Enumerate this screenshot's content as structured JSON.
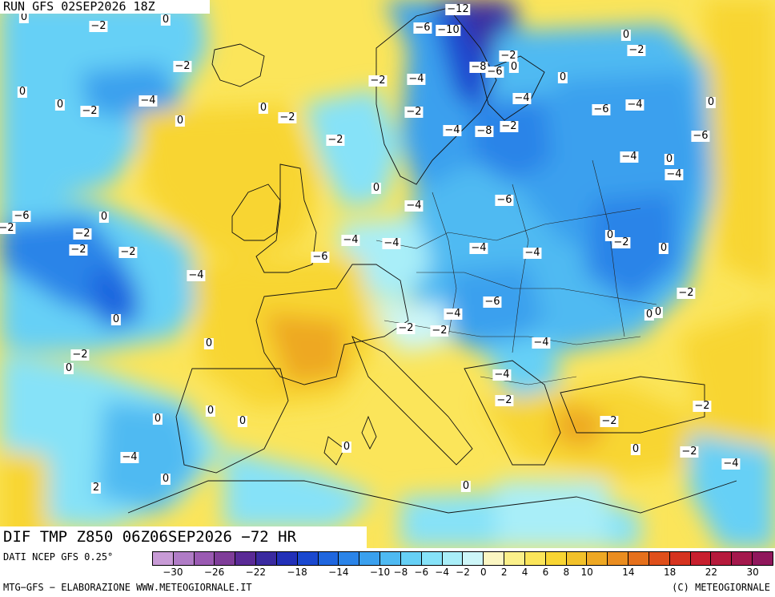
{
  "header": {
    "run_label": "RUN GFS 02SEP2026 18Z"
  },
  "field_title": "DIF TMP Z850 06Z06SEP2026 −72 HR",
  "footer": {
    "source": "DATI NCEP GFS 0.25°",
    "credit_left": "MTG−GFS − ELABORAZIONE WWW.METEOGIORNALE.IT",
    "credit_right": "(C) METEOGIORNALE"
  },
  "legend": {
    "colors": [
      "#c89bd6",
      "#b07cc6",
      "#9a5ab2",
      "#7f3d99",
      "#5a2a96",
      "#3a2aa0",
      "#2230b8",
      "#1a48cf",
      "#1f66df",
      "#2b84e8",
      "#3aa0ee",
      "#4fbaf2",
      "#66d0f6",
      "#86e2f8",
      "#a9eef8",
      "#cdf6f8",
      "#fbf6c2",
      "#fbf08a",
      "#fbe55a",
      "#f8d533",
      "#f2c12a",
      "#eea824",
      "#ea8d20",
      "#e5701c",
      "#df4f1b",
      "#d6331f",
      "#c81f2e",
      "#b61a3c",
      "#a4184c",
      "#90175c"
    ],
    "ticks": [
      "−30",
      "−26",
      "−22",
      "−18",
      "−14",
      "−10",
      "−8",
      "−6",
      "−4",
      "−2",
      "0",
      "2",
      "4",
      "6",
      "8",
      "10",
      "14",
      "18",
      "22",
      "30"
    ]
  },
  "map_labels": [
    {
      "t": "0"
    },
    {
      "t": "−2"
    },
    {
      "t": "0"
    },
    {
      "t": "−12"
    },
    {
      "t": "−6"
    },
    {
      "t": "−10"
    },
    {
      "t": "0"
    },
    {
      "t": "−2"
    },
    {
      "t": "−2"
    },
    {
      "t": "−8"
    },
    {
      "t": "−6"
    },
    {
      "t": "0"
    },
    {
      "t": "−2"
    },
    {
      "t": "0"
    },
    {
      "t": "0"
    },
    {
      "t": "−4"
    },
    {
      "t": "0"
    },
    {
      "t": "−2"
    },
    {
      "t": "−4"
    },
    {
      "t": "−2"
    },
    {
      "t": "−4"
    },
    {
      "t": "0"
    },
    {
      "t": "0"
    },
    {
      "t": "−2"
    },
    {
      "t": "−4"
    },
    {
      "t": "−6"
    },
    {
      "t": "−8"
    },
    {
      "t": "−2"
    },
    {
      "t": "0"
    },
    {
      "t": "−4"
    },
    {
      "t": "−6"
    },
    {
      "t": "−4"
    },
    {
      "t": "0"
    },
    {
      "t": "−2"
    },
    {
      "t": "−4"
    },
    {
      "t": "−2"
    },
    {
      "t": "0"
    },
    {
      "t": "−6"
    },
    {
      "t": "0"
    },
    {
      "t": "−4"
    },
    {
      "t": "−6"
    },
    {
      "t": "−2"
    },
    {
      "t": "−2"
    },
    {
      "t": "−2"
    },
    {
      "t": "−2"
    },
    {
      "t": "−4"
    },
    {
      "t": "−4"
    },
    {
      "t": "−4"
    },
    {
      "t": "−4"
    },
    {
      "t": "0"
    },
    {
      "t": "−2"
    },
    {
      "t": "0"
    },
    {
      "t": "−6"
    },
    {
      "t": "−4"
    },
    {
      "t": "−6"
    },
    {
      "t": "−4"
    },
    {
      "t": "−2"
    },
    {
      "t": "0"
    },
    {
      "t": "0"
    },
    {
      "t": "0"
    },
    {
      "t": "−2"
    },
    {
      "t": "−2"
    },
    {
      "t": "−4"
    },
    {
      "t": "−2"
    },
    {
      "t": "0"
    },
    {
      "t": "0"
    },
    {
      "t": "−4"
    },
    {
      "t": "−2"
    },
    {
      "t": "0"
    },
    {
      "t": "0"
    },
    {
      "t": "0"
    },
    {
      "t": "−2"
    },
    {
      "t": "−2"
    },
    {
      "t": "0"
    },
    {
      "t": "0"
    },
    {
      "t": "−2"
    },
    {
      "t": "−4"
    },
    {
      "t": "0"
    },
    {
      "t": "−4"
    },
    {
      "t": "2"
    },
    {
      "t": "0"
    }
  ]
}
